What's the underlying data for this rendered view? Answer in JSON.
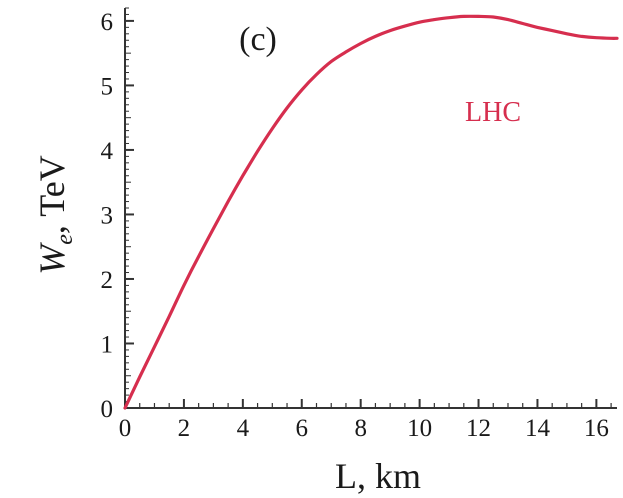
{
  "chart_data": {
    "type": "line",
    "panel_label": "(c)",
    "xlabel": "L, km",
    "ylabel_main": "W",
    "ylabel_sub": "e",
    "ylabel_unit": ", TeV",
    "xlim": [
      0,
      16.7
    ],
    "ylim": [
      0,
      6.2
    ],
    "x_ticks": [
      0,
      2,
      4,
      6,
      8,
      10,
      12,
      14,
      16
    ],
    "y_ticks": [
      0,
      1,
      2,
      3,
      4,
      5,
      6
    ],
    "x_tick_labels": [
      "0",
      "2",
      "4",
      "6",
      "8",
      "10",
      "12",
      "14",
      "16"
    ],
    "y_tick_labels": [
      "0",
      "1",
      "2",
      "3",
      "4",
      "5",
      "6"
    ],
    "grid": false,
    "series": [
      {
        "name": "LHC",
        "color": "#d62e4e",
        "x": [
          0,
          0.5,
          1,
          1.5,
          2,
          2.5,
          3,
          3.5,
          4,
          4.5,
          5,
          5.5,
          6,
          6.5,
          7,
          7.5,
          8,
          8.5,
          9,
          9.5,
          10,
          10.5,
          11,
          11.5,
          12,
          12.5,
          13,
          13.5,
          14,
          14.5,
          15,
          15.5,
          16,
          16.5,
          16.7
        ],
        "y": [
          0,
          0.48,
          0.95,
          1.42,
          1.9,
          2.35,
          2.78,
          3.2,
          3.6,
          3.98,
          4.33,
          4.65,
          4.93,
          5.17,
          5.37,
          5.52,
          5.65,
          5.76,
          5.85,
          5.92,
          5.98,
          6.02,
          6.05,
          6.07,
          6.07,
          6.06,
          6.02,
          5.96,
          5.9,
          5.85,
          5.8,
          5.76,
          5.74,
          5.73,
          5.73
        ]
      }
    ]
  }
}
